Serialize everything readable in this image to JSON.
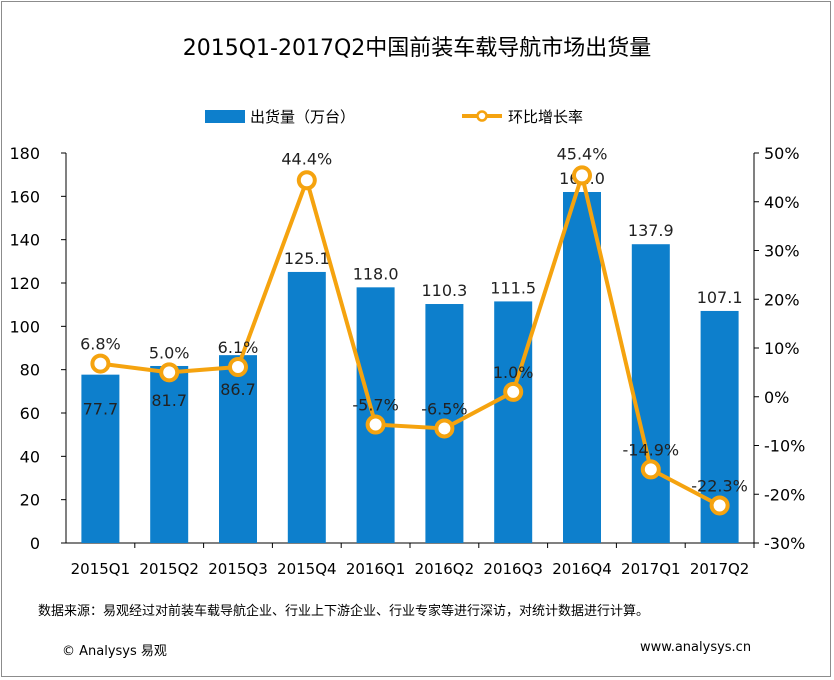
{
  "chart_data": {
    "type": "bar+line",
    "title": "2015Q1-2017Q2中国前装车载导航市场出货量",
    "categories": [
      "2015Q1",
      "2015Q2",
      "2015Q3",
      "2015Q4",
      "2016Q1",
      "2016Q2",
      "2016Q3",
      "2016Q4",
      "2017Q1",
      "2017Q2"
    ],
    "series": [
      {
        "name": "出货量（万台）",
        "type": "bar",
        "axis": "left",
        "color": "#0d7fcc",
        "values": [
          77.7,
          81.7,
          86.7,
          125.1,
          118.0,
          110.3,
          111.5,
          162.0,
          137.9,
          107.1
        ],
        "labels": [
          "77.7",
          "81.7",
          "86.7",
          "125.1",
          "118.0",
          "110.3",
          "111.5",
          "162.0",
          "137.9",
          "107.1"
        ]
      },
      {
        "name": "环比增长率",
        "type": "line",
        "axis": "right",
        "color": "#f5a30f",
        "values": [
          6.8,
          5.0,
          6.1,
          44.4,
          -5.7,
          -6.5,
          1.0,
          45.4,
          -14.9,
          -22.3
        ],
        "labels": [
          "6.8%",
          "5.0%",
          "6.1%",
          "44.4%",
          "-5.7%",
          "-6.5%",
          "1.0%",
          "45.4%",
          "-14.9%",
          "-22.3%"
        ]
      }
    ],
    "y_left": {
      "min": 0,
      "max": 180,
      "ticks": [
        "0",
        "20",
        "40",
        "60",
        "80",
        "100",
        "120",
        "140",
        "160",
        "180"
      ]
    },
    "y_right": {
      "min": -30,
      "max": 50,
      "ticks": [
        "-30%",
        "-20%",
        "-10%",
        "0%",
        "10%",
        "20%",
        "30%",
        "40%",
        "50%"
      ]
    },
    "legend_position": "top-center",
    "grid": false
  },
  "footer": {
    "note": "数据来源：易观经过对前装车载导航企业、行业上下游企业、行业专家等进行深访，对统计数据进行计算。",
    "copyright": "© Analysys 易观",
    "website": "www.analysys.cn"
  }
}
